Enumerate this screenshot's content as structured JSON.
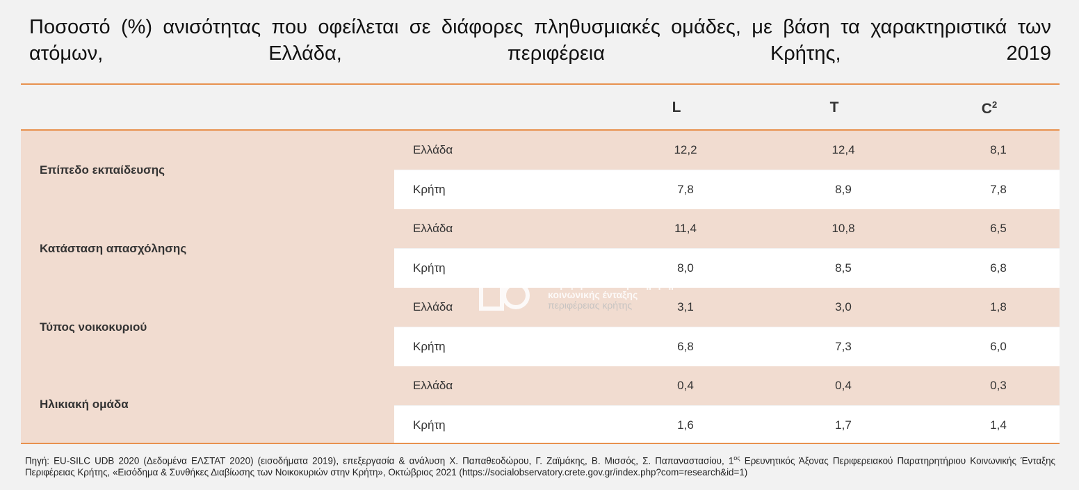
{
  "title": "Ποσοστό (%) ανισότητας που οφείλεται σε διάφορες πληθυσμιακές ομάδες, με βάση τα χαρακτηριστικά των ατόμων, Ελλάδα, περιφέρεια Κρήτης, 2019",
  "columns": {
    "l": "L",
    "t": "T",
    "c_base": "C",
    "c_sup": "2"
  },
  "groups": [
    {
      "label": "Επίπεδο εκπαίδευσης",
      "rows": [
        {
          "region": "Ελλάδα",
          "l": "12,2",
          "t": "12,4",
          "c2": "8,1"
        },
        {
          "region": "Κρήτη",
          "l": "7,8",
          "t": "8,9",
          "c2": "7,8"
        }
      ]
    },
    {
      "label": "Κατάσταση απασχόλησης",
      "rows": [
        {
          "region": "Ελλάδα",
          "l": "11,4",
          "t": "10,8",
          "c2": "6,5"
        },
        {
          "region": "Κρήτη",
          "l": "8,0",
          "t": "8,5",
          "c2": "6,8"
        }
      ]
    },
    {
      "label": "Τύπος νοικοκυριού",
      "rows": [
        {
          "region": "Ελλάδα",
          "l": "3,1",
          "t": "3,0",
          "c2": "1,8"
        },
        {
          "region": "Κρήτη",
          "l": "6,8",
          "t": "7,3",
          "c2": "6,0"
        }
      ]
    },
    {
      "label": "Ηλικιακή ομάδα",
      "rows": [
        {
          "region": "Ελλάδα",
          "l": "0,4",
          "t": "0,4",
          "c2": "0,3"
        },
        {
          "region": "Κρήτη",
          "l": "1,6",
          "t": "1,7",
          "c2": "1,4"
        }
      ]
    }
  ],
  "watermark": {
    "line1": "περιφερειακό παρατηρητήριο",
    "line2": "κοινωνικής ένταξης",
    "line3": "περιφέρειας κρήτης"
  },
  "source": {
    "before": "Πηγή: EU-SILC UDB 2020 (Δεδομένα ΕΛΣΤΑΤ 2020) (εισοδήματα 2019), επεξεργασία & ανάλυση Χ. Παπαθεοδώρου, Γ. Ζαϊμάκης, Β. Μισσός, Σ. Παπαναστασίου, 1",
    "sup": "ος",
    "after": " Ερευνητικός Άξονας Περιφερειακού Παρατηρητήριου Κοινωνικής Ένταξης Περιφέρειας Κρήτης, «Εισόδημα & Συνθήκες Διαβίωσης των Νοικοκυριών στην Κρήτη», Οκτώβριος 2021 (https://socialobservatory.crete.gov.gr/index.php?com=research&id=1)"
  },
  "colors": {
    "accent_rule": "#e8914e",
    "shade": "#f1dcd0",
    "background": "#f2f2f2"
  }
}
